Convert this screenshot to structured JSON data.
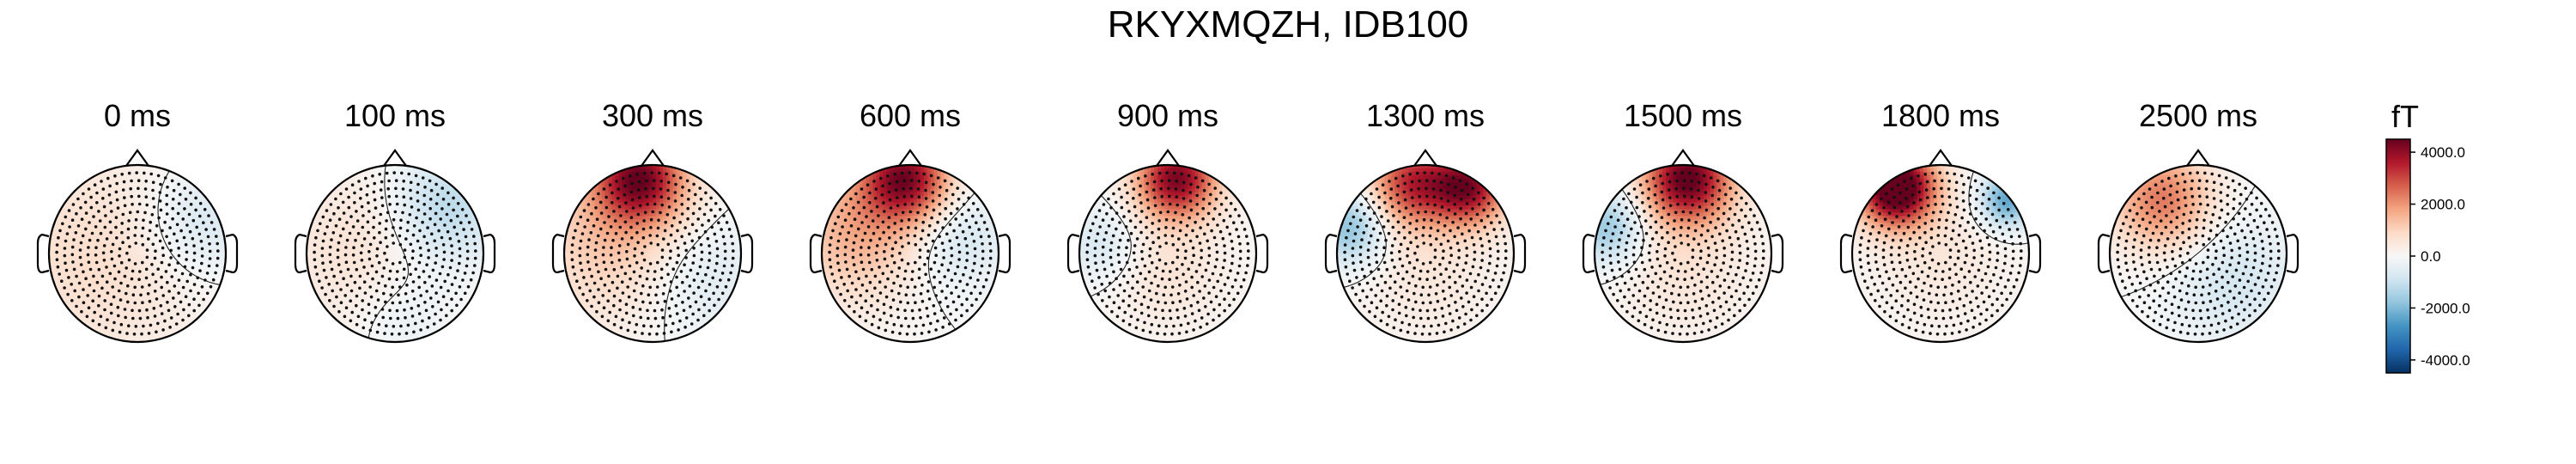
{
  "title": "RKYXMQZH, IDB100",
  "chart_data": {
    "type": "topomap",
    "colorbar": {
      "unit": "fT",
      "vmin": -4500,
      "vmax": 4500,
      "ticks": [
        4000,
        2000,
        0,
        -2000,
        -4000
      ],
      "tick_labels": [
        "4000.0",
        "2000.0",
        "0.0",
        "-2000.0",
        "-4000.0"
      ],
      "colormap": "RdBu_r"
    },
    "maps": [
      {
        "time_label": "0 ms",
        "components": [
          {
            "x": -0.45,
            "y": -0.05,
            "sigma": 0.9,
            "amp": 800
          },
          {
            "x": 0.7,
            "y": 0.35,
            "sigma": 0.45,
            "amp": -900
          }
        ]
      },
      {
        "time_label": "100 ms",
        "components": [
          {
            "x": -0.35,
            "y": 0.05,
            "sigma": 0.7,
            "amp": 700
          },
          {
            "x": 0.55,
            "y": 0.5,
            "sigma": 0.45,
            "amp": -1400
          },
          {
            "x": 0.1,
            "y": -0.7,
            "sigma": 0.4,
            "amp": -500
          }
        ]
      },
      {
        "time_label": "300 ms",
        "components": [
          {
            "x": -0.15,
            "y": 0.85,
            "sigma": 0.35,
            "amp": 3800
          },
          {
            "x": -0.35,
            "y": 0.2,
            "sigma": 0.7,
            "amp": 1400
          },
          {
            "x": 0.5,
            "y": -0.2,
            "sigma": 0.55,
            "amp": -900
          }
        ]
      },
      {
        "time_label": "600 ms",
        "components": [
          {
            "x": -0.05,
            "y": 0.85,
            "sigma": 0.35,
            "amp": 4000
          },
          {
            "x": -0.6,
            "y": 0.25,
            "sigma": 0.55,
            "amp": 1600
          },
          {
            "x": 0.5,
            "y": 0.2,
            "sigma": 0.4,
            "amp": -900
          }
        ]
      },
      {
        "time_label": "900 ms",
        "components": [
          {
            "x": 0.1,
            "y": 0.85,
            "sigma": 0.32,
            "amp": 4200
          },
          {
            "x": -0.75,
            "y": 0.1,
            "sigma": 0.3,
            "amp": -800
          },
          {
            "x": 0.0,
            "y": -0.2,
            "sigma": 0.5,
            "amp": 600
          }
        ]
      },
      {
        "time_label": "1300 ms",
        "components": [
          {
            "x": -0.15,
            "y": 0.8,
            "sigma": 0.35,
            "amp": 3200
          },
          {
            "x": 0.5,
            "y": 0.75,
            "sigma": 0.3,
            "amp": 3800
          },
          {
            "x": -0.85,
            "y": 0.3,
            "sigma": 0.3,
            "amp": -2000
          },
          {
            "x": 0.0,
            "y": -0.2,
            "sigma": 0.6,
            "amp": 500
          }
        ]
      },
      {
        "time_label": "1500 ms",
        "components": [
          {
            "x": 0.05,
            "y": 0.85,
            "sigma": 0.35,
            "amp": 4500
          },
          {
            "x": -0.85,
            "y": 0.3,
            "sigma": 0.3,
            "amp": -1800
          },
          {
            "x": 0.0,
            "y": -0.1,
            "sigma": 0.6,
            "amp": 600
          }
        ]
      },
      {
        "time_label": "1800 ms",
        "components": [
          {
            "x": -0.5,
            "y": 0.75,
            "sigma": 0.3,
            "amp": 5500
          },
          {
            "x": 0.75,
            "y": 0.6,
            "sigma": 0.22,
            "amp": -2500
          },
          {
            "x": 0.0,
            "y": 0.0,
            "sigma": 0.6,
            "amp": 500
          }
        ]
      },
      {
        "time_label": "2500 ms",
        "components": [
          {
            "x": -0.4,
            "y": 0.6,
            "sigma": 0.4,
            "amp": 2400
          },
          {
            "x": 0.4,
            "y": -0.3,
            "sigma": 0.5,
            "amp": -800
          }
        ]
      }
    ]
  }
}
